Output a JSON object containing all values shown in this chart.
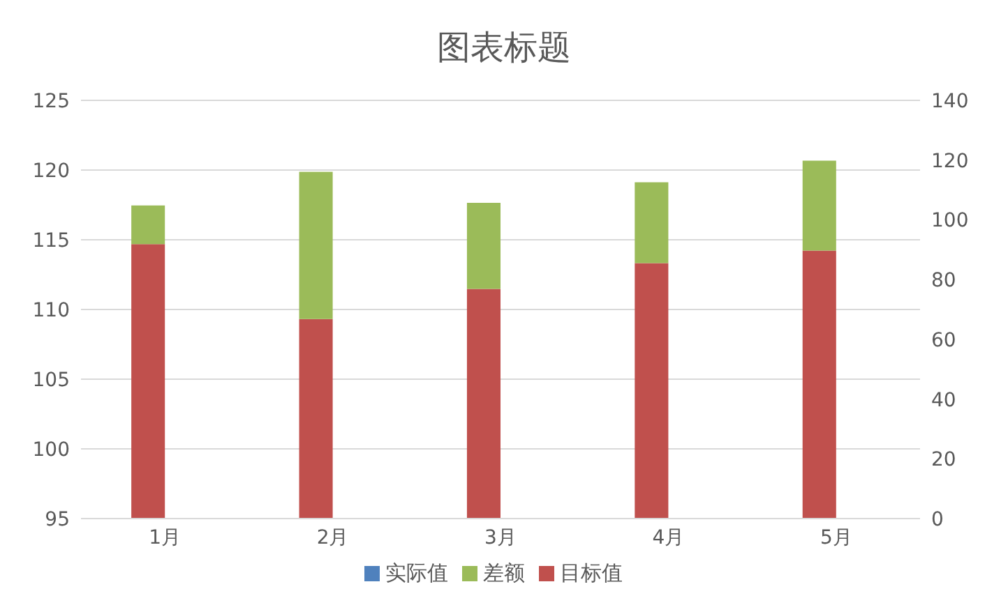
{
  "chart_data": {
    "type": "bar",
    "title": "图表标题",
    "categories": [
      "1月",
      "2月",
      "3月",
      "4月",
      "5月"
    ],
    "stacked": true,
    "series": [
      {
        "name": "实际值",
        "color": "#4f81bd",
        "values": [
          null,
          null,
          null,
          null,
          null
        ]
      },
      {
        "name": "目标值",
        "color": "#c0504d",
        "axis": "y2",
        "values": [
          91.9,
          66.8,
          76.9,
          85.5,
          89.7
        ]
      },
      {
        "name": "差额",
        "color": "#9bbb59",
        "axis": "y2",
        "values": [
          12.9,
          49.3,
          28.8,
          27.1,
          30.1
        ]
      }
    ],
    "ylim": [
      95,
      125
    ],
    "yticks": [
      95,
      100,
      105,
      110,
      115,
      120,
      125
    ],
    "y2lim": [
      0,
      140
    ],
    "y2ticks": [
      0,
      20,
      40,
      60,
      80,
      100,
      120,
      140
    ],
    "grid": "y",
    "legend": "bottom"
  }
}
